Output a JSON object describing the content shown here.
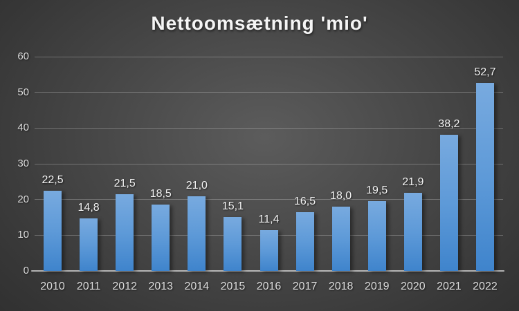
{
  "chart_data": {
    "type": "bar",
    "title": "Nettoomsætning 'mio'",
    "categories": [
      "2010",
      "2011",
      "2012",
      "2013",
      "2014",
      "2015",
      "2016",
      "2017",
      "2018",
      "2019",
      "2020",
      "2021",
      "2022"
    ],
    "values": [
      22.5,
      14.8,
      21.5,
      18.5,
      21.0,
      15.1,
      11.4,
      16.5,
      18.0,
      19.5,
      21.9,
      38.2,
      52.7
    ],
    "value_labels": [
      "22,5",
      "14,8",
      "21,5",
      "18,5",
      "21,0",
      "15,1",
      "11,4",
      "16,5",
      "18,0",
      "19,5",
      "21,9",
      "38,2",
      "52,7"
    ],
    "xlabel": "",
    "ylabel": "",
    "ylim": [
      0,
      60
    ],
    "yticks": [
      0,
      10,
      20,
      30,
      40,
      50,
      60
    ],
    "grid": true,
    "legend_position": "none",
    "colors": {
      "bar_gradient_top": "#78AADF",
      "bar_gradient_mid": "#5E9AD8",
      "bar_gradient_bottom": "#3F84CC",
      "gridline": "rgba(255,255,255,0.26)",
      "axis_line": "rgba(255,255,255,0.62)",
      "tick_label": "#dcdcdc",
      "value_label": "#f2f2f2",
      "title": "#f5f5f5",
      "background_center": "#5c5c5c",
      "background_edge": "#272727"
    }
  }
}
